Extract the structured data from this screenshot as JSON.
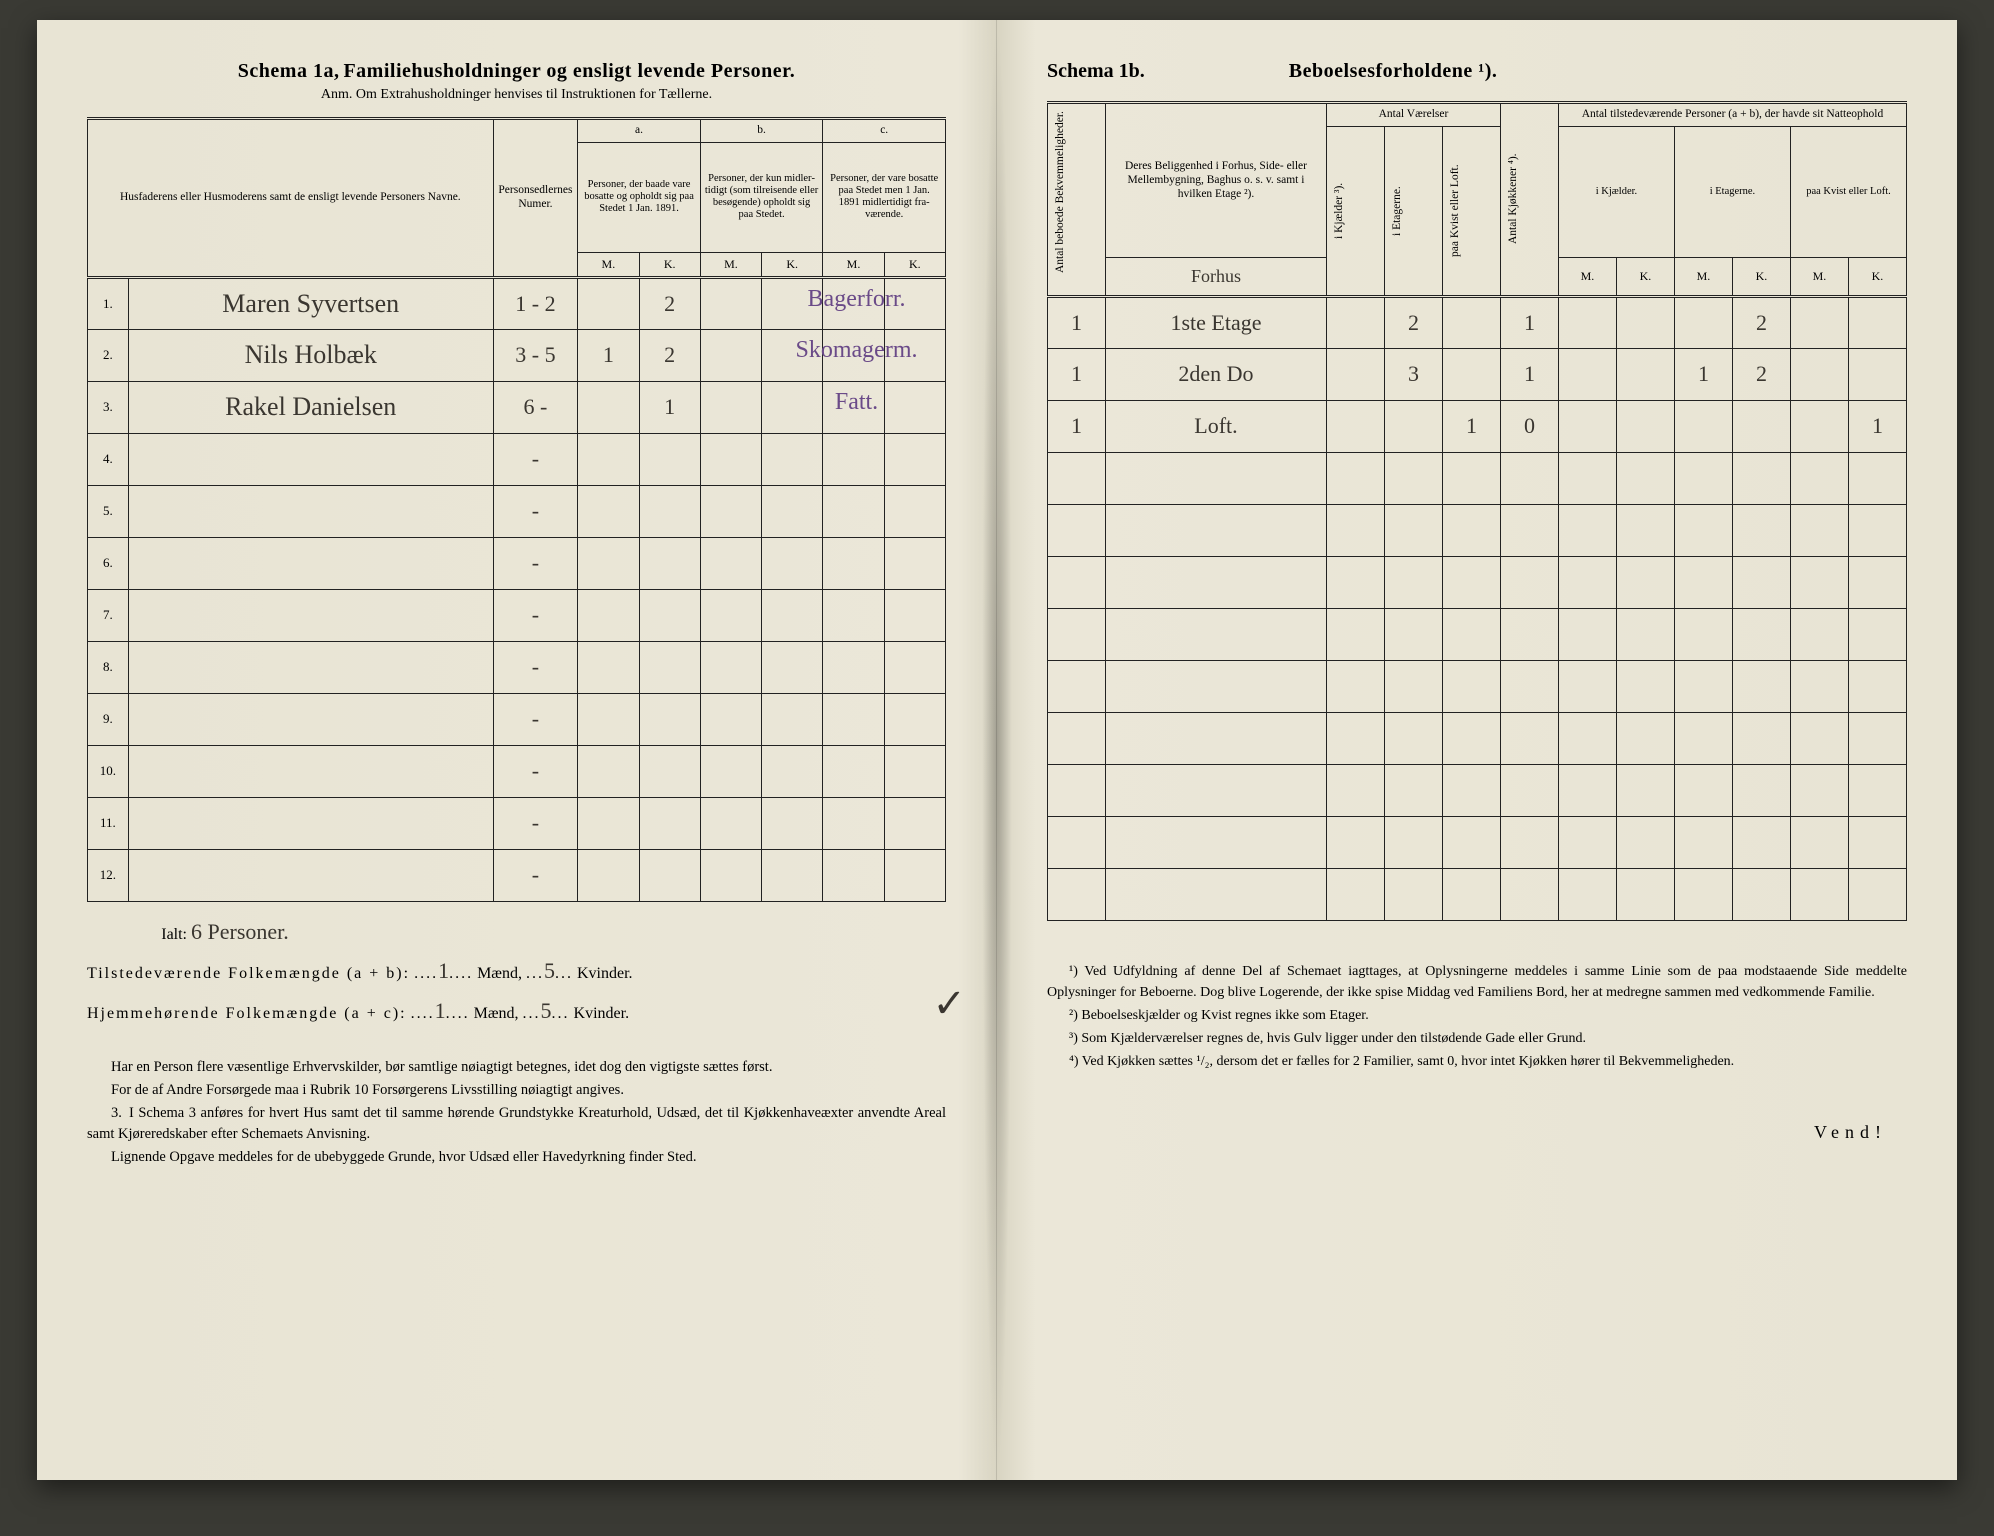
{
  "left": {
    "schema_label": "Schema 1a,",
    "schema_title": "Familiehusholdninger og ensligt levende Personer.",
    "anm": "Anm. Om Extrahusholdninger henvises til Instruktionen for Tællerne.",
    "col_name_header": "Husfaderens eller Husmode­rens samt de ensligt levende Personers Navne.",
    "col_person_header": "Person­sedler­nes Numer.",
    "groups": {
      "a": "a.",
      "b": "b.",
      "c": "c.",
      "a_text": "Personer, der baade vare bo­satte og opholdt sig paa Stedet 1 Jan. 1891.",
      "b_text": "Personer, der kun midler­tidigt (som tilreisende eller besøgende) opholdt sig paa Stedet.",
      "c_text": "Personer, der vare bosatte paa Stedet men 1 Jan. 1891 midler­tidigt fra­værende."
    },
    "mk": {
      "m": "M.",
      "k": "K."
    },
    "rows": [
      {
        "n": "1.",
        "name": "Maren Syvertsen",
        "pers": "1 - 2",
        "aM": "",
        "aK": "2",
        "bM": "",
        "bK": "",
        "cM": "",
        "cK": "",
        "note": "Bagerforr."
      },
      {
        "n": "2.",
        "name": "Nils Holbæk",
        "pers": "3 - 5",
        "aM": "1",
        "aK": "2",
        "bM": "",
        "bK": "",
        "cM": "",
        "cK": "",
        "note": "Skomagerm."
      },
      {
        "n": "3.",
        "name": "Rakel Danielsen",
        "pers": "6 -",
        "aM": "",
        "aK": "1",
        "bM": "",
        "bK": "",
        "cM": "",
        "cK": "",
        "note": "Fatt."
      },
      {
        "n": "4.",
        "name": "",
        "pers": "-",
        "aM": "",
        "aK": "",
        "bM": "",
        "bK": "",
        "cM": "",
        "cK": "",
        "note": ""
      },
      {
        "n": "5.",
        "name": "",
        "pers": "-",
        "aM": "",
        "aK": "",
        "bM": "",
        "bK": "",
        "cM": "",
        "cK": "",
        "note": ""
      },
      {
        "n": "6.",
        "name": "",
        "pers": "-",
        "aM": "",
        "aK": "",
        "bM": "",
        "bK": "",
        "cM": "",
        "cK": "",
        "note": ""
      },
      {
        "n": "7.",
        "name": "",
        "pers": "-",
        "aM": "",
        "aK": "",
        "bM": "",
        "bK": "",
        "cM": "",
        "cK": "",
        "note": ""
      },
      {
        "n": "8.",
        "name": "",
        "pers": "-",
        "aM": "",
        "aK": "",
        "bM": "",
        "bK": "",
        "cM": "",
        "cK": "",
        "note": ""
      },
      {
        "n": "9.",
        "name": "",
        "pers": "-",
        "aM": "",
        "aK": "",
        "bM": "",
        "bK": "",
        "cM": "",
        "cK": "",
        "note": ""
      },
      {
        "n": "10.",
        "name": "",
        "pers": "-",
        "aM": "",
        "aK": "",
        "bM": "",
        "bK": "",
        "cM": "",
        "cK": "",
        "note": ""
      },
      {
        "n": "11.",
        "name": "",
        "pers": "-",
        "aM": "",
        "aK": "",
        "bM": "",
        "bK": "",
        "cM": "",
        "cK": "",
        "note": ""
      },
      {
        "n": "12.",
        "name": "",
        "pers": "-",
        "aM": "",
        "aK": "",
        "bM": "",
        "bK": "",
        "cM": "",
        "cK": "",
        "note": ""
      }
    ],
    "ialt_label": "Ialt:",
    "ialt_value": "6 Personer.",
    "tilstede_label": "Tilstedeværende Folkemængde (a + b):",
    "tilstede_m": "1",
    "tilstede_k": "5",
    "hjemme_label": "Hjemmehørende Folkemængde (a + c):",
    "hjemme_m": "1",
    "hjemme_k": "5",
    "maend": "Mænd,",
    "kvinder": "Kvinder.",
    "notes": [
      "Har en Person flere væsentlige Erhvervskilder, bør samtlige nøiagtigt betegnes, idet dog den vigtigste sættes først.",
      "For de af Andre Forsørgede maa i Rubrik 10 Forsørgerens Livsstilling nøiagtigt angives.",
      "I Schema 3 anføres for hvert Hus samt det til samme hørende Grund­stykke Kreaturhold, Udsæd, det til Kjøkkenhaveæxter anvendte Areal samt Kjøreredskaber efter Schemaets Anvisning.",
      "Lignende Opgave meddeles for de ubebyggede Grunde, hvor Udsæd eller Havedyrkning finder Sted."
    ],
    "note3_num": "3."
  },
  "right": {
    "schema_label": "Schema 1b.",
    "title": "Beboelsesforholdene ¹).",
    "col_antal_bekv": "Antal beboede Bekvemmeligheder.",
    "col_belig": "Deres Beliggenhed i Forhus, Side- eller Mellembygning, Baghus o. s. v. samt i hvilken Etage ²).",
    "col_belig_hand": "Forhus",
    "group_vaer": "Antal Værelser",
    "col_kjael": "i Kjælder ³).",
    "col_etag": "i Etagerne.",
    "col_kvist": "paa Kvist eller Loft.",
    "col_kjok": "Antal Kjøkkener ⁴).",
    "group_tilst": "Antal tilstedeværende Personer (a + b), der havde sit Natteophold",
    "sub_kjael": "i Kjæl­der.",
    "sub_etag": "i Etagerne.",
    "sub_kvist": "paa Kvist eller Loft.",
    "mk": {
      "m": "M.",
      "k": "K."
    },
    "rows": [
      {
        "bekv": "1",
        "belig": "1ste Etage",
        "vkj": "",
        "vet": "2",
        "vkv": "",
        "kjok": "1",
        "kjM": "",
        "kjK": "",
        "etM": "",
        "etK": "2",
        "kvM": "",
        "kvK": ""
      },
      {
        "bekv": "1",
        "belig": "2den Do",
        "vkj": "",
        "vet": "3",
        "vkv": "",
        "kjok": "1",
        "kjM": "",
        "kjK": "",
        "etM": "1",
        "etK": "2",
        "kvM": "",
        "kvK": ""
      },
      {
        "bekv": "1",
        "belig": "Loft.",
        "vkj": "",
        "vet": "",
        "vkv": "1",
        "kjok": "0",
        "kjM": "",
        "kjK": "",
        "etM": "",
        "etK": "",
        "kvM": "",
        "kvK": "1"
      },
      {
        "bekv": "",
        "belig": "",
        "vkj": "",
        "vet": "",
        "vkv": "",
        "kjok": "",
        "kjM": "",
        "kjK": "",
        "etM": "",
        "etK": "",
        "kvM": "",
        "kvK": ""
      },
      {
        "bekv": "",
        "belig": "",
        "vkj": "",
        "vet": "",
        "vkv": "",
        "kjok": "",
        "kjM": "",
        "kjK": "",
        "etM": "",
        "etK": "",
        "kvM": "",
        "kvK": ""
      },
      {
        "bekv": "",
        "belig": "",
        "vkj": "",
        "vet": "",
        "vkv": "",
        "kjok": "",
        "kjM": "",
        "kjK": "",
        "etM": "",
        "etK": "",
        "kvM": "",
        "kvK": ""
      },
      {
        "bekv": "",
        "belig": "",
        "vkj": "",
        "vet": "",
        "vkv": "",
        "kjok": "",
        "kjM": "",
        "kjK": "",
        "etM": "",
        "etK": "",
        "kvM": "",
        "kvK": ""
      },
      {
        "bekv": "",
        "belig": "",
        "vkj": "",
        "vet": "",
        "vkv": "",
        "kjok": "",
        "kjM": "",
        "kjK": "",
        "etM": "",
        "etK": "",
        "kvM": "",
        "kvK": ""
      },
      {
        "bekv": "",
        "belig": "",
        "vkj": "",
        "vet": "",
        "vkv": "",
        "kjok": "",
        "kjM": "",
        "kjK": "",
        "etM": "",
        "etK": "",
        "kvM": "",
        "kvK": ""
      },
      {
        "bekv": "",
        "belig": "",
        "vkj": "",
        "vet": "",
        "vkv": "",
        "kjok": "",
        "kjM": "",
        "kjK": "",
        "etM": "",
        "etK": "",
        "kvM": "",
        "kvK": ""
      },
      {
        "bekv": "",
        "belig": "",
        "vkj": "",
        "vet": "",
        "vkv": "",
        "kjok": "",
        "kjM": "",
        "kjK": "",
        "etM": "",
        "etK": "",
        "kvM": "",
        "kvK": ""
      },
      {
        "bekv": "",
        "belig": "",
        "vkj": "",
        "vet": "",
        "vkv": "",
        "kjok": "",
        "kjM": "",
        "kjK": "",
        "etM": "",
        "etK": "",
        "kvM": "",
        "kvK": ""
      }
    ],
    "footnotes": [
      "¹) Ved Udfyldning af denne Del af Schemaet iagttages, at Oplysningerne meddeles i samme Linie som de paa modstaaende Side meddelte Oplysninger for Beboerne. Dog blive Logerende, der ikke spise Middag ved Familiens Bord, her at medregne sammen med vedkommende Familie.",
      "²) Beboelseskjælder og Kvist regnes ikke som Etager.",
      "³) Som Kjælderværelser regnes de, hvis Gulv ligger under den tilstødende Gade eller Grund.",
      "⁴) Ved Kjøkken sættes ¹/₂, dersom det er fælles for 2 Familier, samt 0, hvor intet Kjøkken hører til Bekvemmeligheden."
    ],
    "vend": "Vend!"
  }
}
